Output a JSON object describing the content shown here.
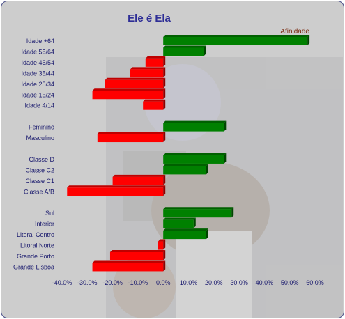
{
  "chart_data": {
    "type": "bar",
    "orientation": "horizontal",
    "title": "Ele é Ela",
    "legend": {
      "entries": [
        "Afinidade"
      ],
      "placement": "top-right"
    },
    "xlim": [
      -0.4,
      0.6
    ],
    "x_ticks": [
      "-40.0%",
      "-30.0%",
      "-20.0%",
      "-10.0%",
      "0.0%",
      "10.0%",
      "20.0%",
      "30.0%",
      "40.0%",
      "50.0%",
      "60.0%"
    ],
    "x_tick_values": [
      -0.4,
      -0.3,
      -0.2,
      -0.1,
      0.0,
      0.1,
      0.2,
      0.3,
      0.4,
      0.5,
      0.6
    ],
    "colors": {
      "positive": "#008000",
      "negative": "#ff0000"
    },
    "categories": [
      "Idade +64",
      "Idade 55/64",
      "Idade 45/54",
      "Idade 35/44",
      "Idade 25/34",
      "Idade 15/24",
      "Idade 4/14",
      "",
      "Feminino",
      "Masculino",
      "",
      "Classe D",
      "Classe C2",
      "Classe C1",
      "Classe A/B",
      "",
      "Sul",
      "Interior",
      "Litoral Centro",
      "Litoral Norte",
      "Grande Porto",
      "Grande Lisboa"
    ],
    "series": [
      {
        "name": "Afinidade",
        "values": [
          0.57,
          0.16,
          -0.07,
          -0.13,
          -0.23,
          -0.28,
          -0.08,
          null,
          0.24,
          -0.26,
          null,
          0.24,
          0.17,
          -0.2,
          -0.38,
          null,
          0.27,
          0.12,
          0.17,
          -0.02,
          -0.21,
          -0.28
        ]
      }
    ],
    "grid": false
  }
}
